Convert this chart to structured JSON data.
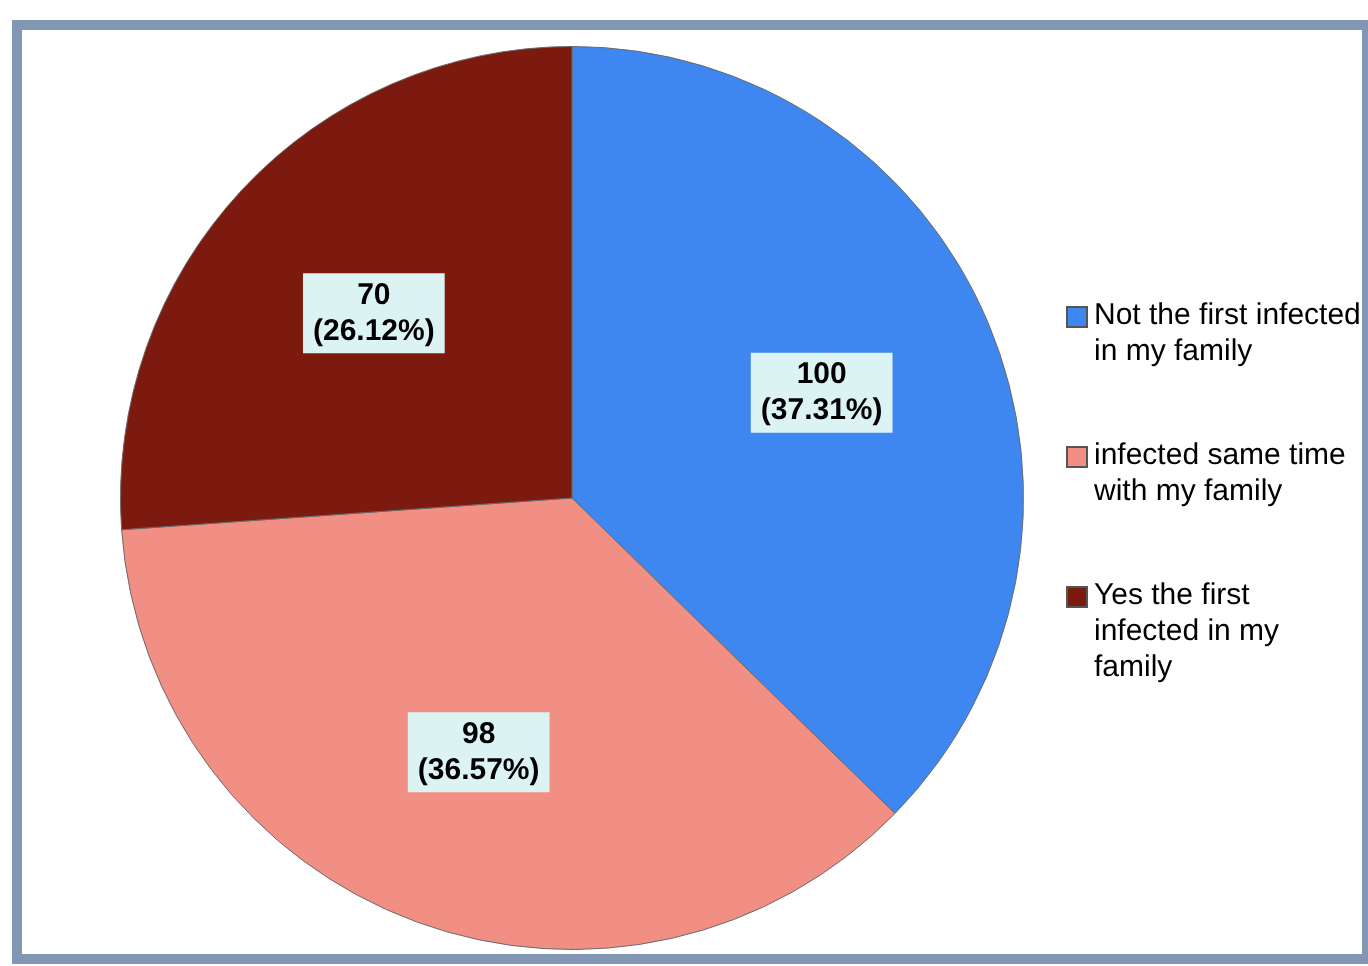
{
  "chart_data": {
    "type": "pie",
    "categories": [
      "Not the first infected in my family",
      "infected same time with my family",
      "Yes the first infected in my family"
    ],
    "values": [
      100,
      98,
      70
    ],
    "colors": [
      "#3f87f0",
      "#f28f84",
      "#7d1a0f"
    ],
    "value_labels": [
      "100\n(37.31%)",
      "98\n(36.57%)",
      "70\n(26.12%)"
    ],
    "legend": "right"
  }
}
